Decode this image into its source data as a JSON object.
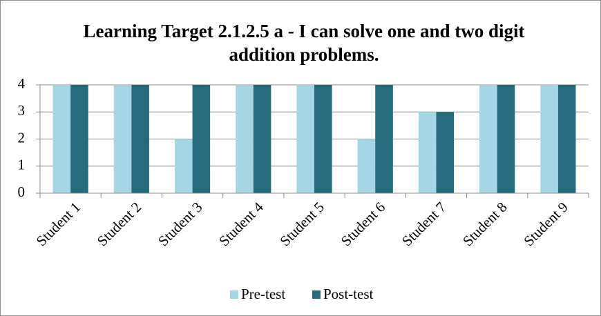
{
  "chart_data": {
    "type": "bar",
    "title": "Learning Target 2.1.2.5 a - I can solve one and two digit addition problems.",
    "categories": [
      "Student 1",
      "Student 2",
      "Student 3",
      "Student 4",
      "Student 5",
      "Student 6",
      "Student 7",
      "Student 8",
      "Student 9"
    ],
    "series": [
      {
        "name": "Pre-test",
        "color": "#a6d6e3",
        "values": [
          4,
          4,
          2,
          4,
          4,
          2,
          3,
          4,
          4
        ]
      },
      {
        "name": "Post-test",
        "color": "#256b79",
        "values": [
          4,
          4,
          4,
          4,
          4,
          4,
          3,
          4,
          4
        ]
      }
    ],
    "ylim": [
      0,
      4
    ],
    "yticks": [
      0,
      1,
      2,
      3,
      4
    ],
    "grid": true,
    "legend": "bottom"
  }
}
